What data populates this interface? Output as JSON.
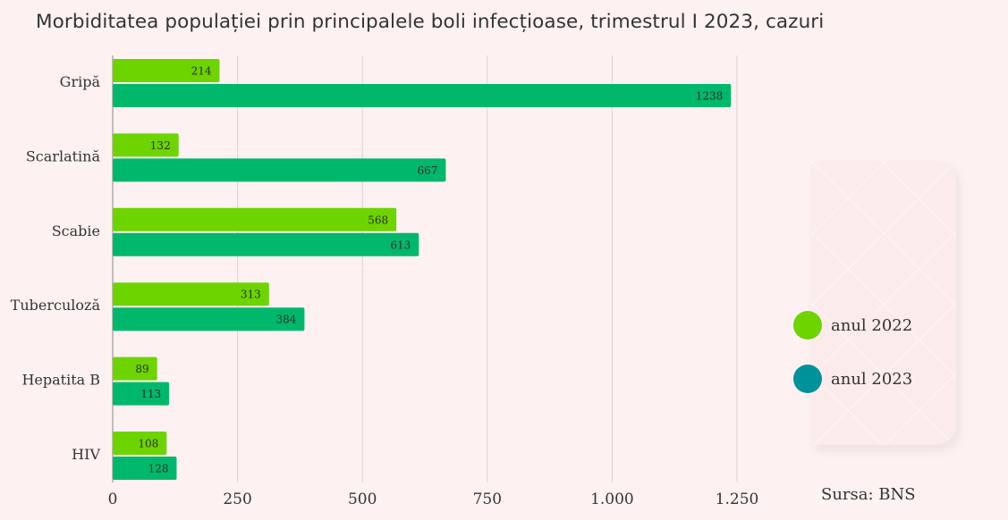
{
  "title": "Morbiditatea populației prin principalele boli infecțioase, trimestrul I 2023, cazuri",
  "source": "Sursa: BNS",
  "legend": [
    {
      "label": "anul 2022",
      "color": "#6dd400"
    },
    {
      "label": "anul 2023",
      "color": "#00929a"
    }
  ],
  "chart_data": {
    "type": "bar",
    "orientation": "horizontal",
    "title": "Morbiditatea populației prin principalele boli infecțioase, trimestrul I 2023, cazuri",
    "categories": [
      "Gripă",
      "Scarlatină",
      "Scabie",
      "Tuberculoză",
      "Hepatita B",
      "HIV"
    ],
    "series": [
      {
        "name": "anul 2022",
        "color": "#6dd400",
        "values": [
          214,
          132,
          568,
          313,
          89,
          108
        ]
      },
      {
        "name": "anul 2023",
        "color": "#00b86b",
        "values": [
          1238,
          667,
          613,
          384,
          113,
          128
        ]
      }
    ],
    "xlim": [
      0,
      1250
    ],
    "xticks": [
      0,
      250,
      500,
      750,
      1000,
      1250
    ],
    "xtick_labels": [
      "0",
      "250",
      "500",
      "750",
      "1.000",
      "1.250"
    ],
    "grid": true,
    "legend_position": "right"
  }
}
